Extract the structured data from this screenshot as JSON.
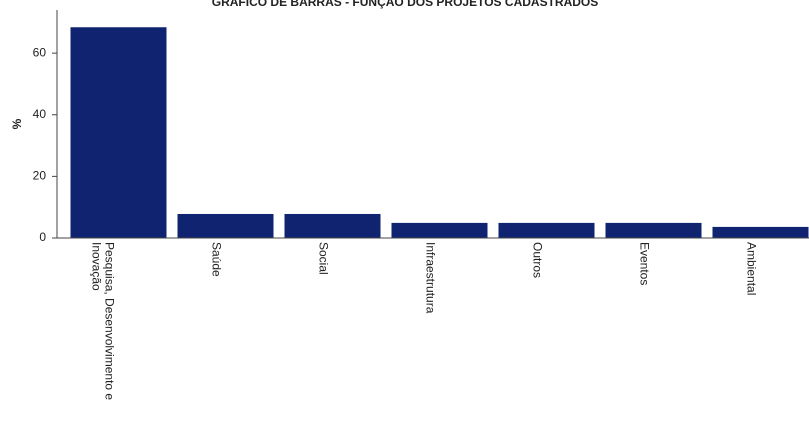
{
  "chart_data": {
    "type": "bar",
    "title": "GRÁFICO DE BARRAS - FUNÇÃO DOS PROJETOS CADASTRADOS",
    "y_label": "%",
    "categories": [
      "Pesquisa, Desenvolvimento e Inovação",
      "Saúde",
      "Social",
      "Infraestrutura",
      "Outros",
      "Eventos",
      "Ambiental"
    ],
    "values": [
      68.4,
      7.8,
      7.8,
      4.9,
      4.9,
      4.9,
      3.6
    ],
    "color": "#0f2370",
    "ylim": [
      0,
      74
    ],
    "yticks": [
      0,
      20,
      40,
      60
    ],
    "grid": false
  }
}
